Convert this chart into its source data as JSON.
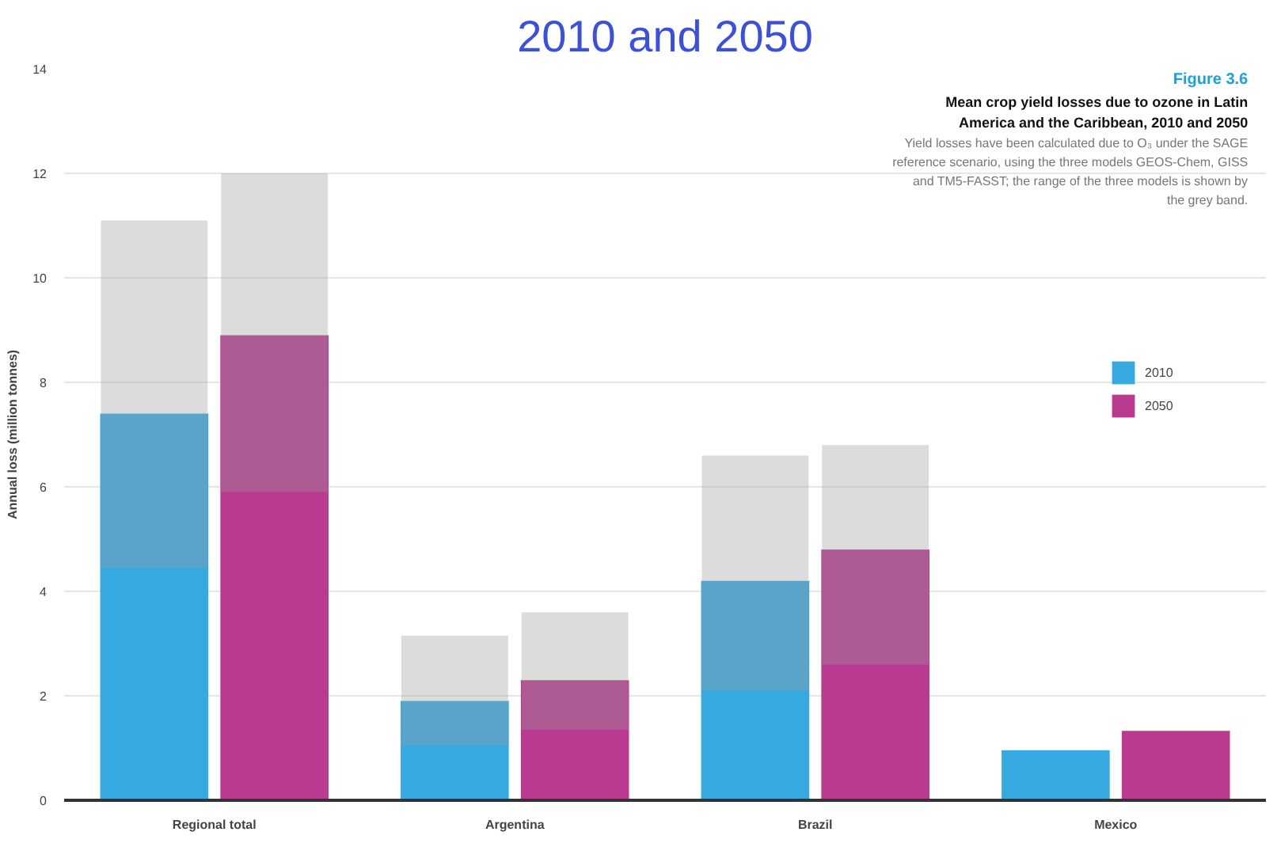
{
  "chart_data": {
    "type": "bar",
    "title": "2010 and 2050",
    "subtitle": "Mean crop yield losses due to ozone in Latin America and the Caribbean, 2010 and 2050",
    "annotations": [
      "Figure 3.6",
      "Yield losses have been calculated due to O₃ under the SAGE reference scenario, using the three models GEOS-Chem, GISS and TM5-FASST; the range of the three models is shown by the grey band."
    ],
    "ylabel": "Annual loss (million tonnes)",
    "categories": [
      "Regional total",
      "Argentina",
      "Brazil",
      "Mexico"
    ],
    "series": [
      {
        "name": "2010",
        "color": "#36a9e1",
        "values": [
          7.4,
          1.9,
          4.2,
          0.96
        ],
        "errors": [
          [
            4.45,
            11.1
          ],
          [
            1.05,
            3.15
          ],
          [
            2.1,
            6.6
          ],
          null
        ]
      },
      {
        "name": "2050",
        "color": "#b93a90",
        "values": [
          8.9,
          2.3,
          4.8,
          1.33
        ],
        "errors": [
          [
            5.9,
            12.0
          ],
          [
            1.35,
            3.6
          ],
          [
            2.6,
            6.8
          ],
          null
        ]
      }
    ],
    "ylim": [
      0,
      14
    ],
    "yticks": [
      0,
      2,
      4,
      6,
      8,
      10,
      12,
      14
    ],
    "grid": "y",
    "legend": "top right"
  }
}
